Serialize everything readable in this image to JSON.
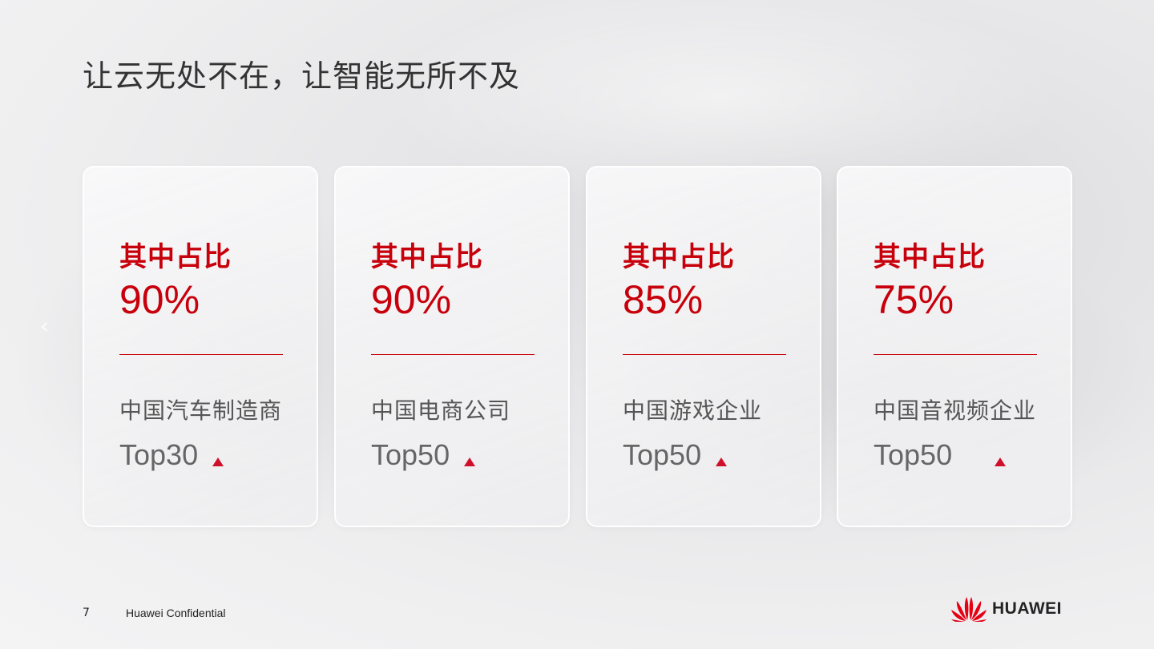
{
  "title": "让云无处不在，让智能无所不及",
  "cards": [
    {
      "label": "其中占比",
      "percent": "90%",
      "category": "中国汽车制造商",
      "rank": "Top30"
    },
    {
      "label": "其中占比",
      "percent": "90%",
      "category": "中国电商公司",
      "rank": "Top50"
    },
    {
      "label": "其中占比",
      "percent": "85%",
      "category": "中国游戏企业",
      "rank": "Top50"
    },
    {
      "label": "其中占比",
      "percent": "75%",
      "category": "中国音视频企业",
      "rank": "Top50"
    }
  ],
  "footer": {
    "page": "7",
    "confidential": "Huawei Confidential",
    "brand": "HUAWEI"
  },
  "colors": {
    "accent": "#c7000b"
  },
  "icons": {
    "nav": "chevron-left-icon",
    "indicator": "triangle-up-icon"
  }
}
